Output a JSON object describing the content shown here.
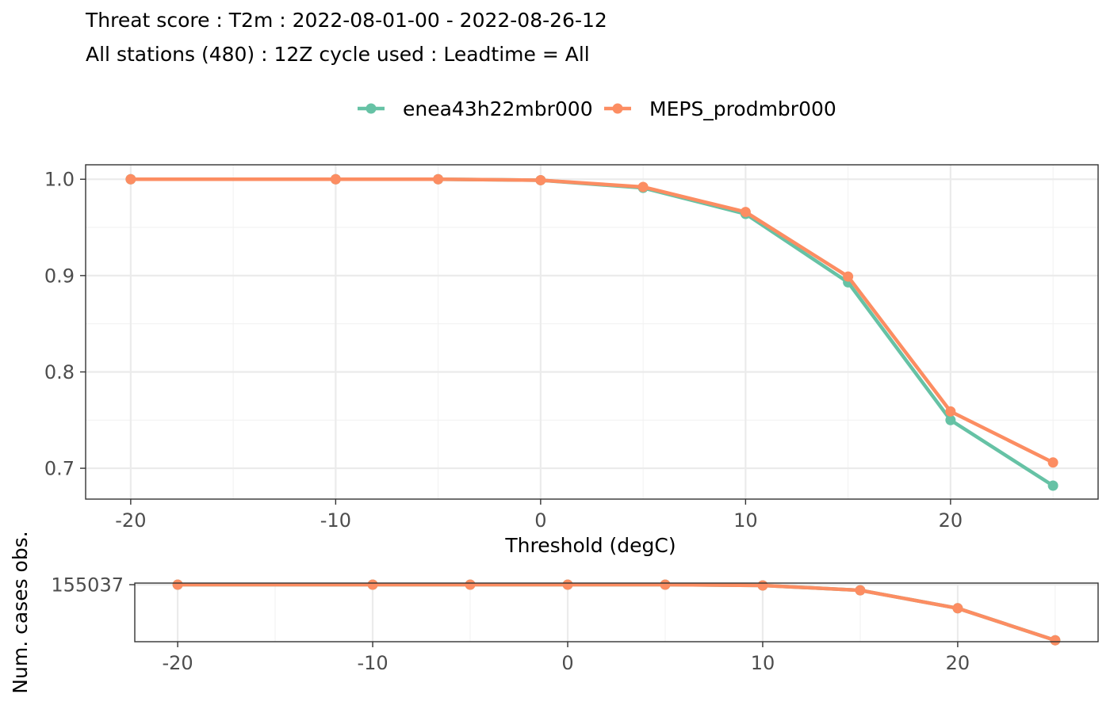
{
  "chart_data": [
    {
      "type": "line",
      "title": "Threat score : T2m : 2022-08-01-00 - 2022-08-26-12",
      "subtitle": "All stations (480) : 12Z cycle used : Leadtime = All",
      "xlabel": "Threshold (degC)",
      "ylabel": "",
      "x": [
        -20,
        -10,
        -5,
        0,
        5,
        10,
        15,
        20,
        25
      ],
      "xlim": [
        -22.2,
        27.2
      ],
      "ylim": [
        0.668,
        1.015
      ],
      "xticks": [
        -20,
        -10,
        0,
        10,
        20
      ],
      "yticks": [
        0.7,
        0.8,
        0.9,
        1.0
      ],
      "xtick_labels": [
        "-20",
        "-10",
        "0",
        "10",
        "20"
      ],
      "ytick_labels": [
        "0.7",
        "0.8",
        "0.9",
        "1.0"
      ],
      "grid": true,
      "legend_position": "top",
      "series": [
        {
          "name": "enea43h22mbr000",
          "color": "#66c2a5",
          "values": [
            1.0,
            1.0,
            1.0,
            0.999,
            0.991,
            0.964,
            0.893,
            0.75,
            0.682
          ]
        },
        {
          "name": "MEPS_prodmbr000",
          "color": "#fc8d62",
          "values": [
            1.0,
            1.0,
            1.0,
            0.999,
            0.992,
            0.966,
            0.899,
            0.759,
            0.706
          ]
        }
      ]
    },
    {
      "type": "line",
      "title": "",
      "xlabel": "",
      "ylabel": "Num. cases obs.",
      "x": [
        -20,
        -10,
        -5,
        0,
        5,
        10,
        15,
        20,
        25
      ],
      "xlim": [
        -22.2,
        27.2
      ],
      "ylim": [
        70400,
        157400
      ],
      "xticks": [
        -20,
        -10,
        0,
        10,
        20
      ],
      "yticks": [
        155037
      ],
      "xtick_labels": [
        "-20",
        "-10",
        "0",
        "10",
        "20"
      ],
      "ytick_labels": [
        "155037"
      ],
      "grid": true,
      "series": [
        {
          "name": "enea43h22mbr000",
          "color": "#66c2a5",
          "values": [
            155037,
            155037,
            155037,
            155037,
            155030,
            153900,
            146700,
            120000,
            72500
          ]
        },
        {
          "name": "MEPS_prodmbr000",
          "color": "#fc8d62",
          "values": [
            155037,
            155037,
            155037,
            155037,
            155030,
            153900,
            146700,
            120000,
            72500
          ]
        }
      ]
    }
  ]
}
